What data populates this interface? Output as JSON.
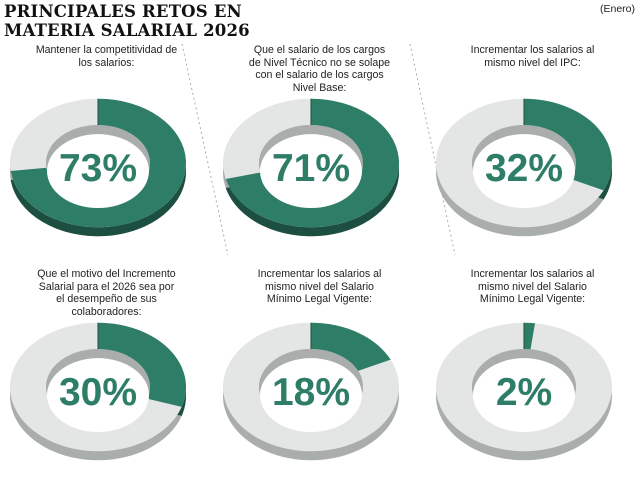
{
  "header": {
    "title_line1": "PRINCIPALES RETOS EN",
    "title_line2": "MATERIA SALARIAL 2026",
    "period": "(Enero)"
  },
  "colors": {
    "primary": "#2e7e67",
    "primary_dark": "#1d4f41",
    "ring": "#e4e6e5",
    "ring_dark": "#a9adab"
  },
  "chart_data": {
    "type": "pie",
    "donuts": [
      {
        "label": "Mantener la competitividad de los salarios:",
        "value": 73,
        "value_label": "73%"
      },
      {
        "label": "Que el salario de los cargos de Nivel Técnico no se solape con el salario de los cargos Nivel Base:",
        "value": 71,
        "value_label": "71%"
      },
      {
        "label": "Incrementar los salarios al mismo nivel del IPC:",
        "value": 32,
        "value_label": "32%"
      },
      {
        "label": "Que el motivo del Incremento Salarial para el 2026 sea por el desempeño de sus colaboradores:",
        "value": 30,
        "value_label": "30%"
      },
      {
        "label": "Incrementar los salarios al mismo nivel del Salario Mínimo Legal Vigente:",
        "value": 18,
        "value_label": "18%"
      },
      {
        "label": "Incrementar los salarios al mismo nivel del Salario Mínimo Legal Vigente:",
        "value": 2,
        "value_label": "2%"
      }
    ]
  }
}
